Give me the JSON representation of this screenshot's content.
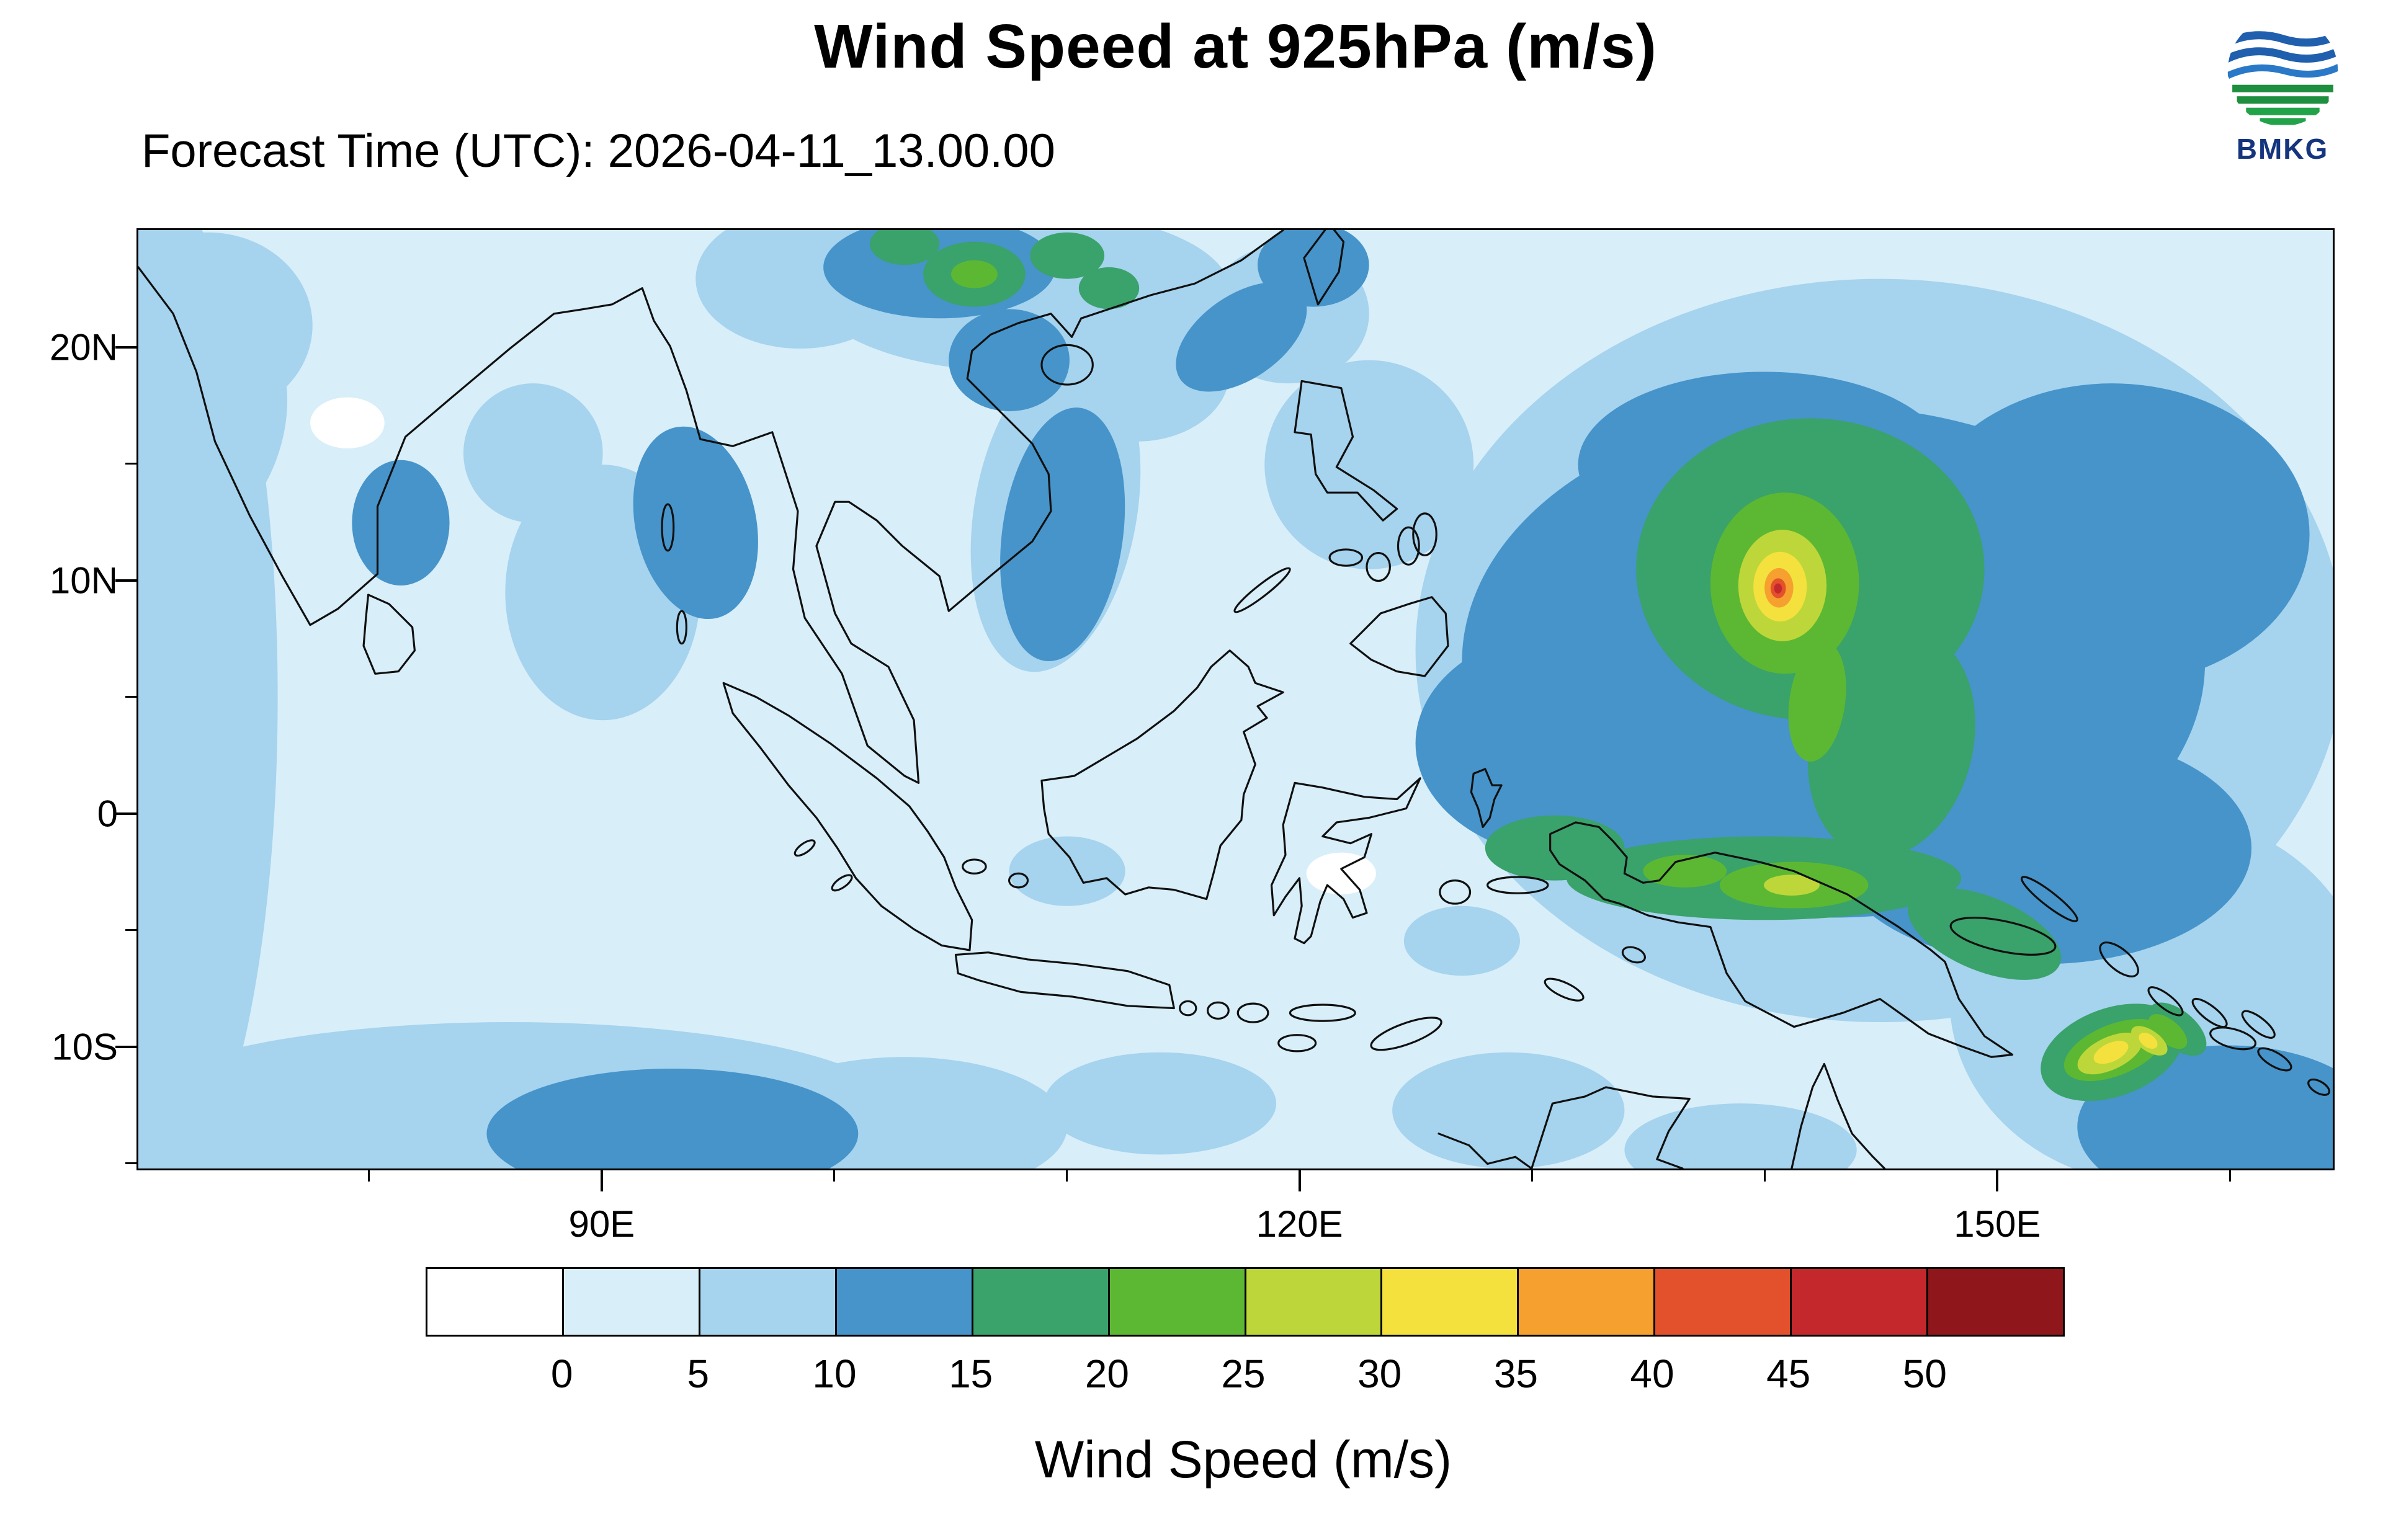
{
  "header": {
    "title": "Wind Speed at 925hPa (m/s)",
    "forecast_time": "Forecast Time (UTC): 2026-04-11_13.00.00",
    "logo_text": "BMKG"
  },
  "map": {
    "lat_ticks": [
      {
        "label": "20N",
        "deg": 20
      },
      {
        "label": "10N",
        "deg": 10
      },
      {
        "label": "0",
        "deg": 0
      },
      {
        "label": "10S",
        "deg": -10
      }
    ],
    "lon_ticks": [
      {
        "label": "90E",
        "deg": 90
      },
      {
        "label": "120E",
        "deg": 120
      },
      {
        "label": "150E",
        "deg": 150
      }
    ],
    "minor_lat_ticks": [
      15,
      5,
      -5,
      -15
    ],
    "minor_lon_ticks": [
      80,
      100,
      110,
      130,
      140,
      160
    ]
  },
  "colorbar": {
    "tick_labels": [
      "0",
      "5",
      "10",
      "15",
      "20",
      "25",
      "30",
      "35",
      "40",
      "45",
      "50"
    ],
    "colors": [
      "#ffffff",
      "#d8eef9",
      "#a6d3ee",
      "#4694ca",
      "#3aa26b",
      "#5cb832",
      "#bdd73a",
      "#f4e13e",
      "#f6a02f",
      "#e2512b",
      "#c5282c",
      "#8f161a"
    ],
    "label": "Wind Speed (m/s)"
  },
  "chart_data": {
    "type": "heatmap",
    "title": "Wind Speed at 925hPa (m/s)",
    "subtitle": "Forecast Time (UTC): 2026-04-11_13.00.00",
    "variable": "wind speed",
    "level_hPa": 925,
    "units": "m/s",
    "x_axis": {
      "tick_labels": [
        "90E",
        "120E",
        "150E"
      ],
      "range_deg_east": [
        70,
        164.5
      ]
    },
    "y_axis": {
      "tick_labels": [
        "20N",
        "10N",
        "0",
        "10S"
      ],
      "range_deg_north": [
        -15.3,
        25.1
      ]
    },
    "contour_levels": [
      0,
      5,
      10,
      15,
      20,
      25,
      30,
      35,
      40,
      45,
      50
    ],
    "palette": [
      "#ffffff",
      "#d8eef9",
      "#a6d3ee",
      "#4694ca",
      "#3aa26b",
      "#5cb832",
      "#bdd73a",
      "#f4e13e",
      "#f6a02f",
      "#e2512b",
      "#c5282c",
      "#8f161a"
    ],
    "legend_position": "bottom",
    "grid": false,
    "features": [
      {
        "name": "tropical-cyclone",
        "lon_e": 140.6,
        "lat_n": 9.7,
        "peak_wind_ms": 48,
        "ring_levels_ms": [
          15,
          20,
          25,
          30,
          35,
          40,
          45
        ]
      },
      {
        "name": "southern-vortex",
        "lon_e": 155.0,
        "lat_n": -10.3,
        "peak_wind_ms": 32
      },
      {
        "name": "western-pacific-easterlies",
        "area": "125E-164E, 5S-20N",
        "wind_ms": "10-20"
      },
      {
        "name": "new-guinea-north-coast-jet",
        "area": "131E-152E, 1S-5S",
        "wind_ms": "15-25"
      },
      {
        "name": "south-china-coastal-winds",
        "area": "100E-115E, 18N-25N",
        "wind_ms": "10-20"
      },
      {
        "name": "south-china-sea-band",
        "area": "105E-115E, 5N-18N",
        "wind_ms": "5-15"
      },
      {
        "name": "southern-indian-ocean-trades",
        "area": "70E-120E, 10S-15S",
        "wind_ms": "5-15"
      },
      {
        "name": "maritime-continent-background",
        "area": "Indonesia region",
        "wind_ms": "0-10"
      }
    ]
  }
}
